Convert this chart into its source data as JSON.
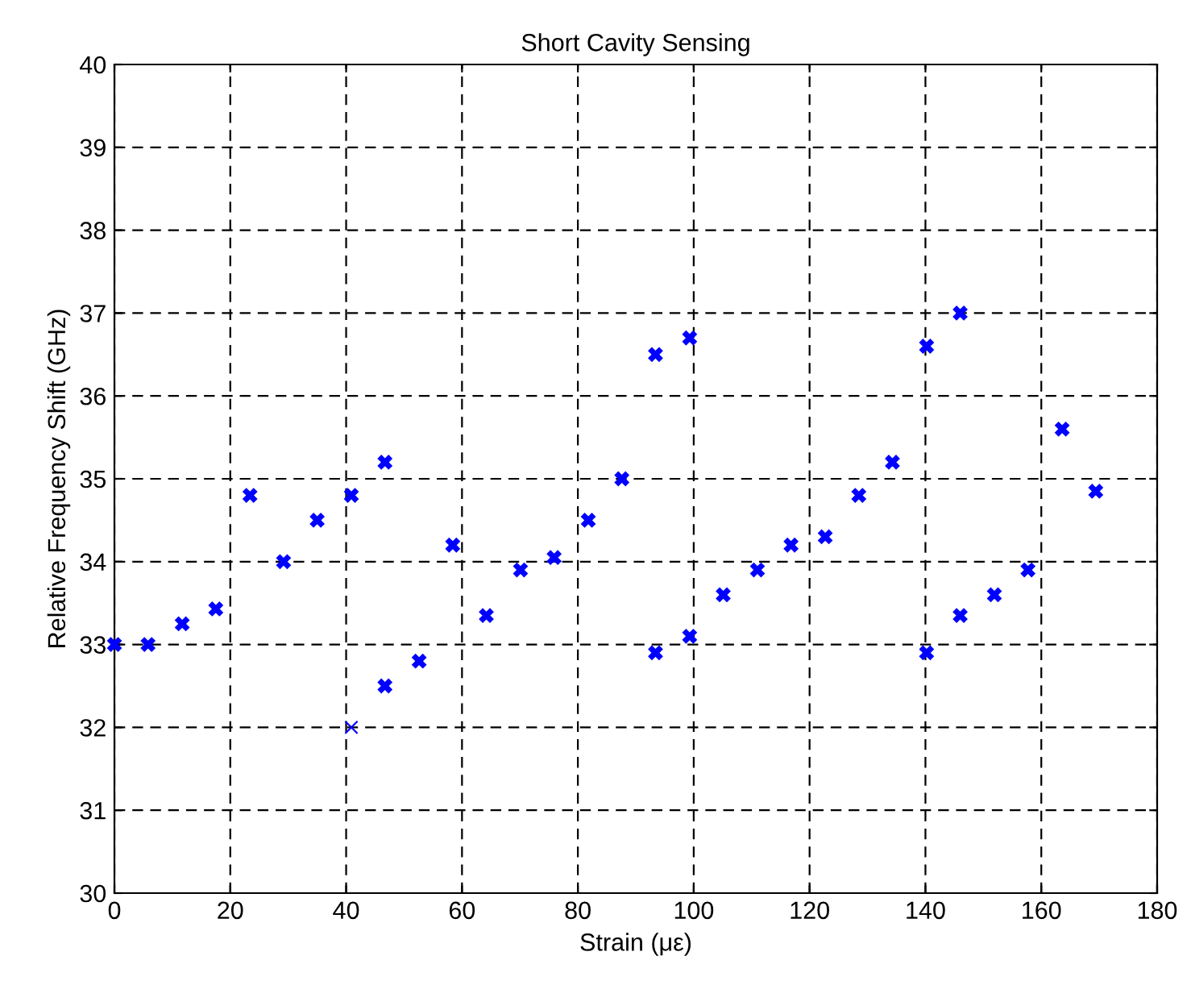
{
  "chart_data": {
    "type": "scatter",
    "title": "Short Cavity Sensing",
    "xlabel": "Strain (με)",
    "ylabel": "Relative Frequency Shift (GHz)",
    "xlim": [
      0,
      180
    ],
    "xticks": [
      0,
      20,
      40,
      60,
      80,
      100,
      120,
      140,
      160,
      180
    ],
    "ylim": [
      30,
      40
    ],
    "yticks": [
      30,
      31,
      32,
      33,
      34,
      35,
      36,
      37,
      38,
      39,
      40
    ],
    "grid": true,
    "marker": "cross",
    "series": [
      {
        "color": "#0000ff",
        "x": [
          0,
          5.8,
          11.7,
          17.5,
          23.4,
          29.2,
          35.0,
          40.9,
          46.7,
          46.7,
          52.6,
          58.4,
          64.2,
          70.1,
          75.9,
          81.8,
          87.6,
          93.4,
          93.4,
          99.3,
          99.3,
          105.1,
          111.0,
          116.8,
          122.7,
          128.5,
          134.3,
          140.2,
          140.2,
          146.0,
          146.0,
          151.9,
          157.7,
          163.6,
          169.4
        ],
        "values": [
          33.0,
          33.0,
          33.25,
          33.43,
          34.8,
          34.0,
          34.5,
          34.8,
          35.2,
          32.5,
          32.8,
          34.2,
          33.35,
          33.9,
          34.05,
          34.5,
          35.0,
          36.5,
          32.9,
          36.7,
          33.1,
          33.6,
          33.9,
          34.2,
          34.3,
          34.8,
          35.2,
          36.6,
          32.9,
          37.0,
          33.35,
          33.6,
          33.9,
          35.6,
          34.85
        ]
      },
      {
        "color": "#0000ff",
        "x": [
          40.9
        ],
        "values": [
          32.0
        ]
      }
    ]
  }
}
